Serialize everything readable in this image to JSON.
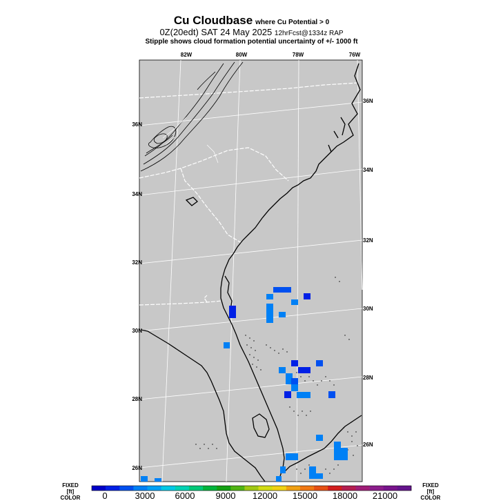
{
  "title": {
    "main": "Cu Cloudbase",
    "main_sub": "where Cu Potential > 0",
    "line2_run": "0Z(20edt) SAT 24 May 2025",
    "line2_fcst": "12hrFcst@1334z RAP",
    "line3": "Stipple shows cloud formation potential uncertainty of +/- 1000 ft"
  },
  "map": {
    "land_color": "#c8c8c8",
    "lon_labels": [
      "82W",
      "80W",
      "78W",
      "76W"
    ],
    "lat_labels_left": [
      "36N",
      "34N",
      "32N",
      "30N",
      "28N",
      "26N"
    ],
    "lat_labels_right": [
      "36N",
      "34N",
      "32N",
      "30N",
      "28N",
      "26N"
    ]
  },
  "colorbar": {
    "left_top": "FIXED",
    "left_mid": "[ft]",
    "left_bot": "COLOR",
    "right_top": "FIXED",
    "right_mid": "[ft]",
    "right_bot": "COLOR",
    "ticks": [
      "0",
      "3000",
      "6000",
      "9000",
      "12000",
      "15000",
      "18000",
      "21000"
    ],
    "colors": [
      "#0000c8",
      "#0020e6",
      "#0050f0",
      "#0080f5",
      "#00a0f5",
      "#00c8e6",
      "#00d2b4",
      "#00c878",
      "#00b43c",
      "#14a014",
      "#50b414",
      "#a0c814",
      "#d2dc14",
      "#f0d214",
      "#f0a014",
      "#f07814",
      "#e65014",
      "#d21e1e",
      "#b41e50",
      "#a01e78",
      "#8c1e8c",
      "#78148c",
      "#64148c"
    ]
  }
}
